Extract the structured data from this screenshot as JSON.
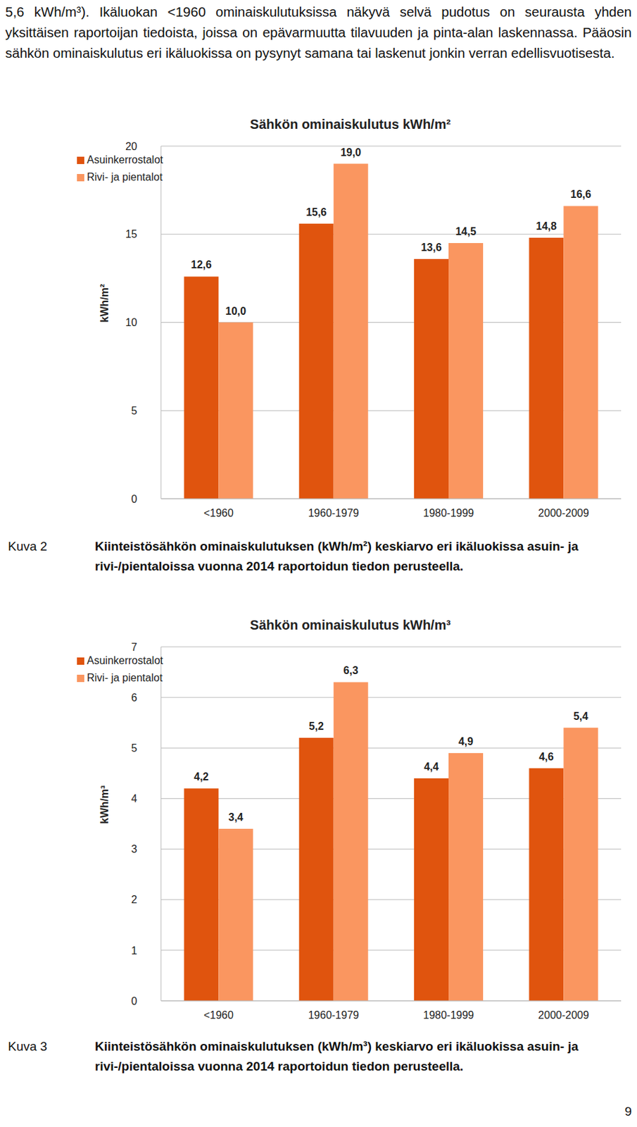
{
  "paragraph": "5,6 kWh/m³). Ikäluokan <1960 ominaiskulutuksissa näkyvä selvä pudotus on seurausta yhden yksittäisen raportoijan tiedoista, joissa on epävarmuutta tilavuuden ja pinta-alan laskennassa. Pääosin sähkön ominaiskulutus eri ikäluokissa on pysynyt samana tai laskenut jonkin verran edellisvuotisesta.",
  "figures": [
    {
      "label": "Kuva 2",
      "caption": "Kiinteistösähkön ominaiskulutuksen (kWh/m²) keskiarvo eri ikäluokissa asuin- ja rivi-/pientaloissa vuonna 2014 raportoidun tiedon perusteella."
    },
    {
      "label": "Kuva 3",
      "caption": "Kiinteistösähkön ominaiskulutuksen (kWh/m³) keskiarvo eri ikäluokissa asuin- ja rivi-/pientaloissa vuonna 2014 raportoidun tiedon perusteella."
    }
  ],
  "page_number": "9",
  "chart_data": [
    {
      "type": "bar",
      "title": "Sähkön ominaiskulutus kWh/m²",
      "y_label": "kWh/m²",
      "categories": [
        "<1960",
        "1960-1979",
        "1980-1999",
        "2000-2009"
      ],
      "series": [
        {
          "name": "Asuinkerrostalot",
          "color": "#e0540e",
          "values": [
            12.6,
            15.6,
            13.6,
            14.8
          ],
          "value_labels": [
            "12,6",
            "15,6",
            "13,6",
            "14,8"
          ]
        },
        {
          "name": "Rivi- ja pientalot",
          "color": "#fa9660",
          "values": [
            10.0,
            19.0,
            14.5,
            16.6
          ],
          "value_labels": [
            "10,0",
            "19,0",
            "14,5",
            "16,6"
          ]
        }
      ],
      "ylim": [
        0,
        20
      ],
      "yticks": [
        0,
        5,
        10,
        15,
        20
      ],
      "grid": true,
      "legend": "upper left",
      "data_labels": true
    },
    {
      "type": "bar",
      "title": "Sähkön ominaiskulutus kWh/m³",
      "y_label": "kWh/m³",
      "categories": [
        "<1960",
        "1960-1979",
        "1980-1999",
        "2000-2009"
      ],
      "series": [
        {
          "name": "Asuinkerrostalot",
          "color": "#e0540e",
          "values": [
            4.2,
            5.2,
            4.4,
            4.6
          ],
          "value_labels": [
            "4,2",
            "5,2",
            "4,4",
            "4,6"
          ]
        },
        {
          "name": "Rivi- ja pientalot",
          "color": "#fa9660",
          "values": [
            3.4,
            6.3,
            4.9,
            5.4
          ],
          "value_labels": [
            "3,4",
            "6,3",
            "4,9",
            "5,4"
          ]
        }
      ],
      "ylim": [
        0,
        7
      ],
      "yticks": [
        0,
        1,
        2,
        3,
        4,
        5,
        6,
        7
      ],
      "grid": true,
      "legend": "upper left",
      "data_labels": true
    }
  ]
}
